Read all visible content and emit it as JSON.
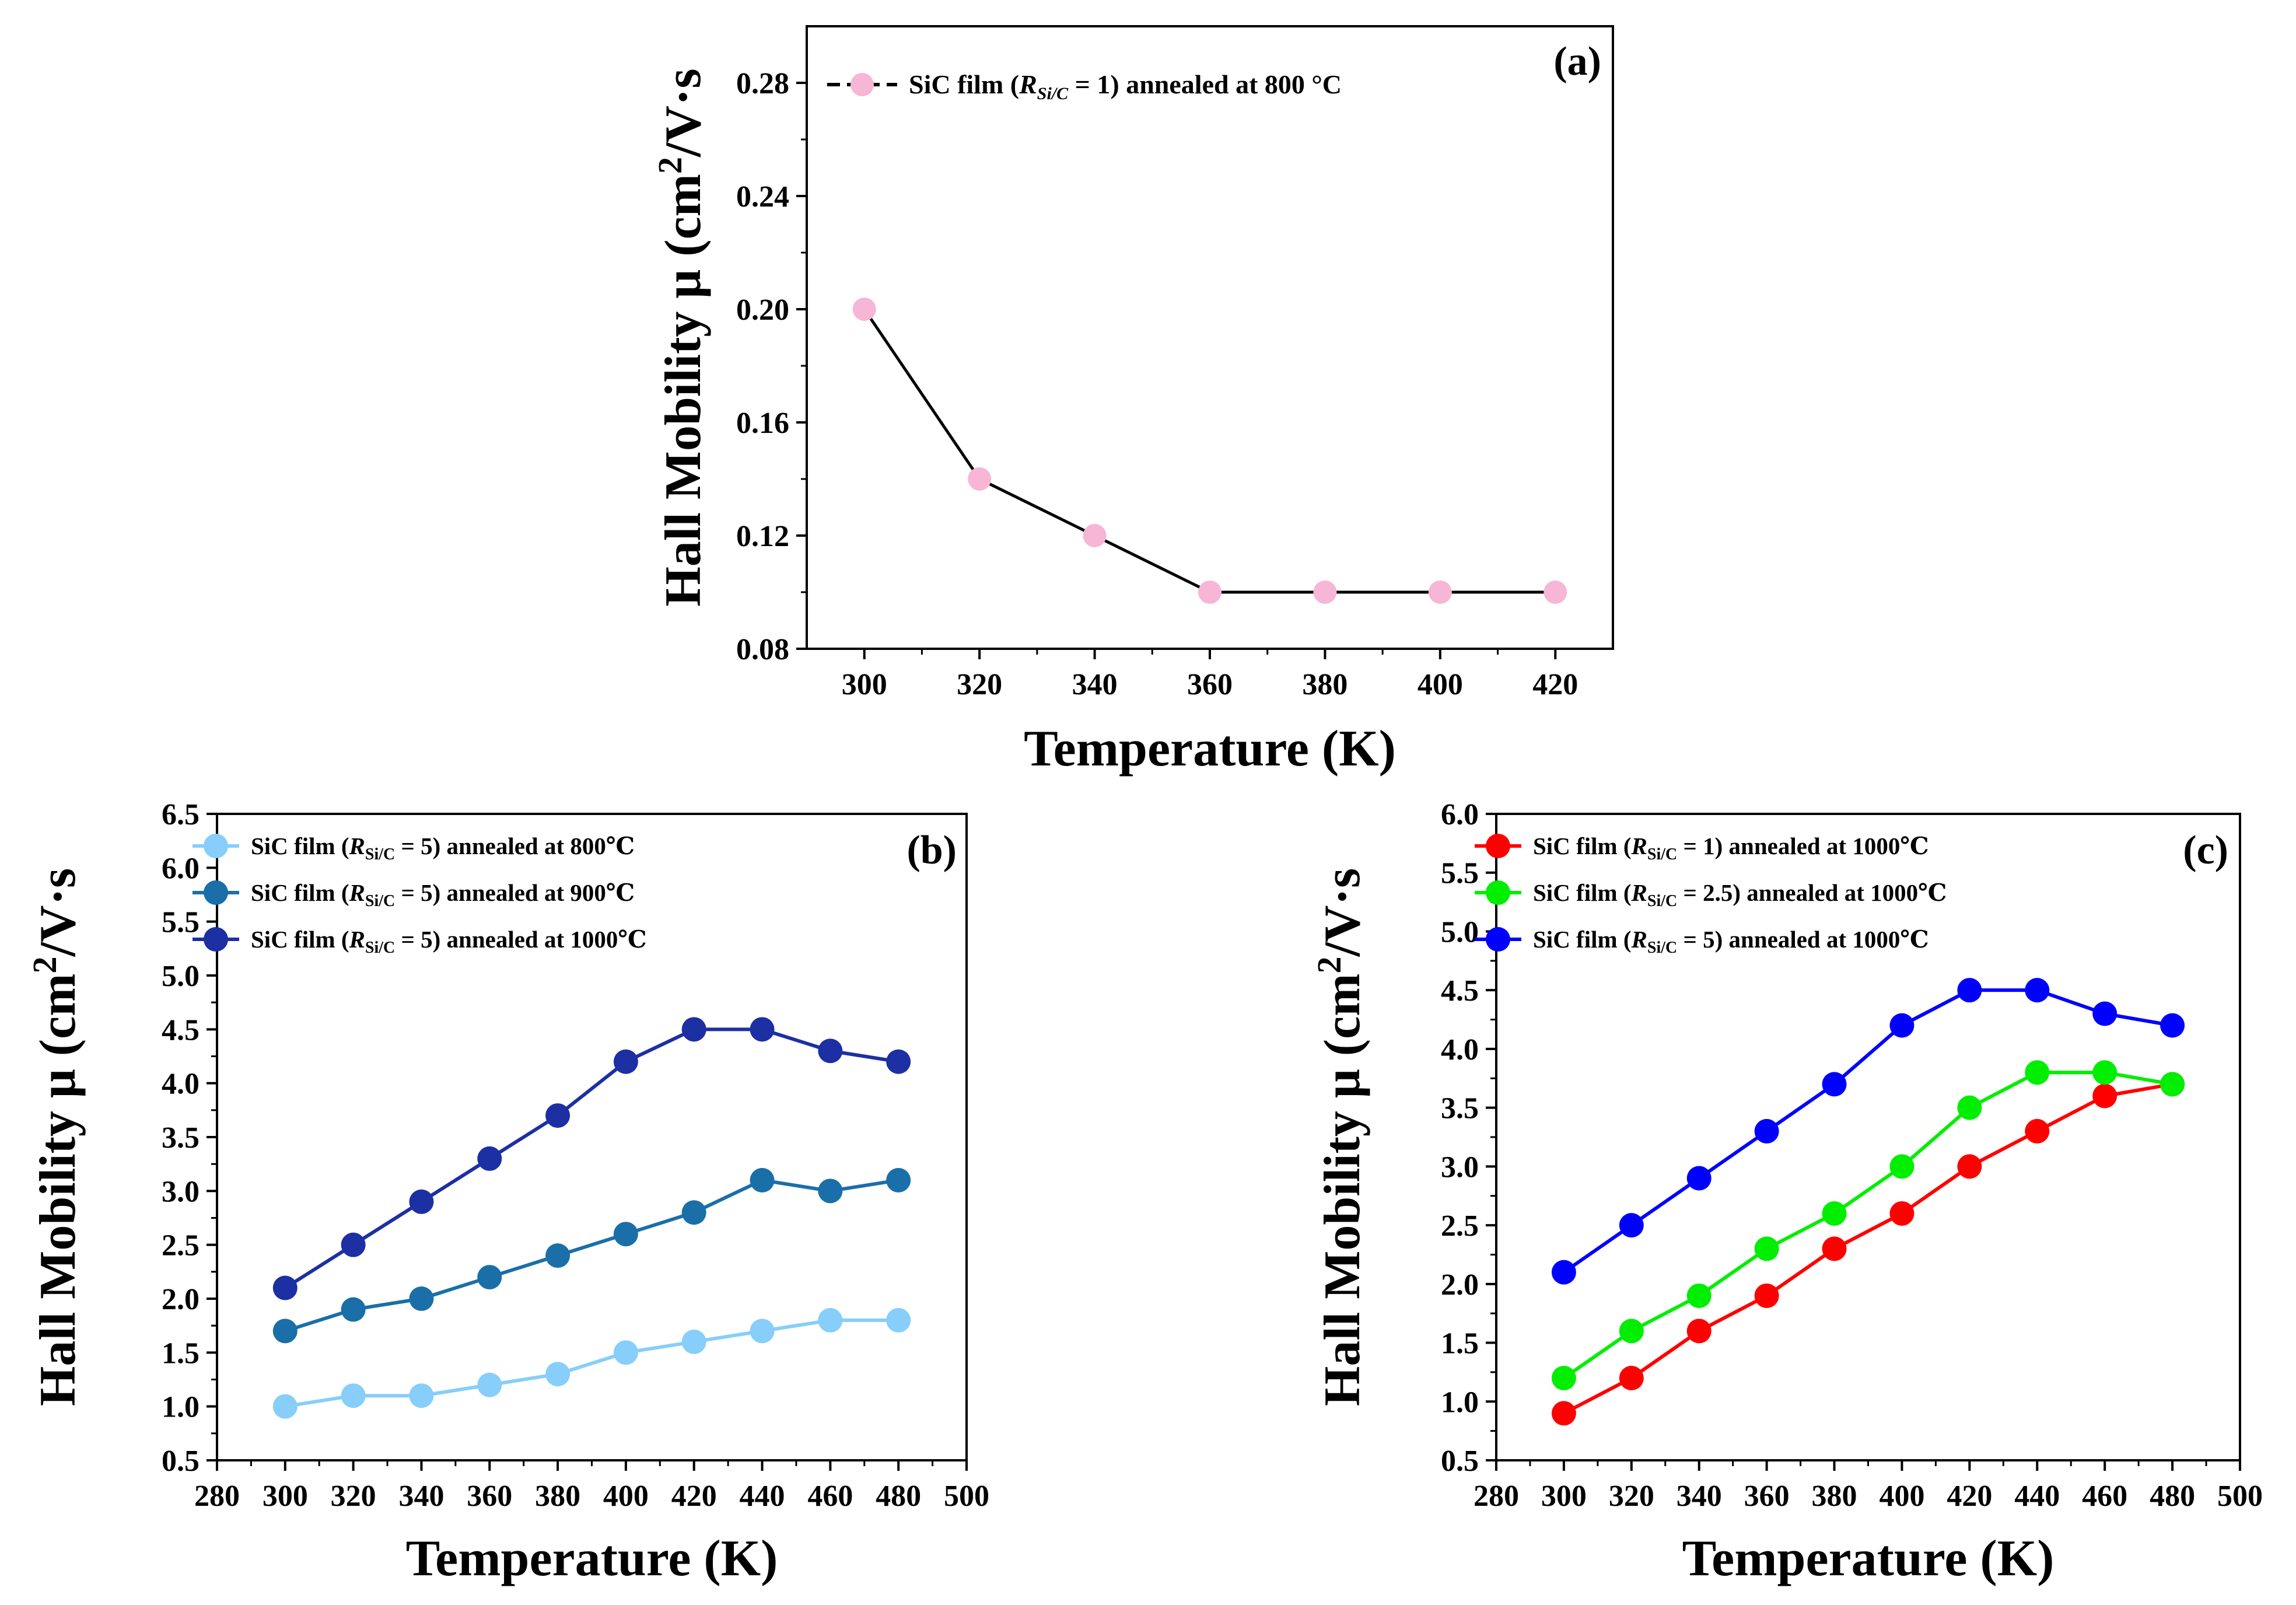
{
  "chart_data": [
    {
      "type": "line",
      "panel_label": "(a)",
      "xlabel": "Temperature (K)",
      "ylabel": {
        "main": "Hall Mobility μ (cm",
        "sup": "2",
        "tail": "/V·s"
      },
      "xlim": [
        290,
        430
      ],
      "ylim": [
        0.08,
        0.3
      ],
      "xticks": [
        300,
        320,
        340,
        360,
        380,
        400,
        420
      ],
      "xtick_labels": [
        "300",
        "320",
        "340",
        "360",
        "380",
        "400",
        "420"
      ],
      "yticks": [
        0.08,
        0.12,
        0.16,
        0.2,
        0.24,
        0.28
      ],
      "ytick_labels": [
        "0.08",
        "0.12",
        "0.16",
        "0.20",
        "0.24",
        "0.28"
      ],
      "legend_position": "top-left",
      "series": [
        {
          "name": "SiC film (R_Si/C = 1) annealed at 800 °C",
          "legend": {
            "pre": "SiC film (",
            "r": "R",
            "sub": "Si/C",
            "post": " = 1) annealed at 800 °C"
          },
          "line_color": "#000000",
          "marker_color": "#f7b6d6",
          "x": [
            300,
            320,
            340,
            360,
            380,
            400,
            420
          ],
          "y": [
            0.2,
            0.14,
            0.12,
            0.1,
            0.1,
            0.1,
            0.1
          ]
        }
      ]
    },
    {
      "type": "line",
      "panel_label": "(b)",
      "xlabel": "Temperature (K)",
      "ylabel": {
        "main": "Hall Mobility μ (cm",
        "sup": "2",
        "tail": "/V·s"
      },
      "xlim": [
        280,
        500
      ],
      "ylim": [
        0.5,
        6.5
      ],
      "xticks": [
        280,
        300,
        320,
        340,
        360,
        380,
        400,
        420,
        440,
        460,
        480,
        500
      ],
      "xtick_labels": [
        "280",
        "300",
        "320",
        "340",
        "360",
        "380",
        "400",
        "420",
        "440",
        "460",
        "480",
        "500"
      ],
      "yticks": [
        0.5,
        1.0,
        1.5,
        2.0,
        2.5,
        3.0,
        3.5,
        4.0,
        4.5,
        5.0,
        5.5,
        6.0,
        6.5
      ],
      "ytick_labels": [
        "0.5",
        "1.0",
        "1.5",
        "2.0",
        "2.5",
        "3.0",
        "3.5",
        "4.0",
        "4.5",
        "5.0",
        "5.5",
        "6.0",
        "6.5"
      ],
      "legend_position": "top-left",
      "series": [
        {
          "name": "SiC film (R_Si/C = 5) annealed at 800℃",
          "legend": {
            "pre": "SiC film (",
            "r": "R",
            "sub": "Si/C",
            "post": " = 5) annealed at 800℃"
          },
          "line_color": "#87cefa",
          "marker_color": "#87cefa",
          "x": [
            300,
            320,
            340,
            360,
            380,
            400,
            420,
            440,
            460,
            480
          ],
          "y": [
            1.0,
            1.1,
            1.1,
            1.2,
            1.3,
            1.5,
            1.6,
            1.7,
            1.8,
            1.8
          ]
        },
        {
          "name": "SiC film (R_Si/C = 5) annealed at 900℃",
          "legend": {
            "pre": "SiC film (",
            "r": "R",
            "sub": "Si/C",
            "post": " = 5) annealed at 900℃"
          },
          "line_color": "#1a6fa8",
          "marker_color": "#1a6fa8",
          "x": [
            300,
            320,
            340,
            360,
            380,
            400,
            420,
            440,
            460,
            480
          ],
          "y": [
            1.7,
            1.9,
            2.0,
            2.2,
            2.4,
            2.6,
            2.8,
            3.1,
            3.0,
            3.1
          ]
        },
        {
          "name": "SiC film (R_Si/C = 5) annealed at 1000℃",
          "legend": {
            "pre": "SiC film (",
            "r": "R",
            "sub": "Si/C",
            "post": " = 5) annealed at 1000℃"
          },
          "line_color": "#1c2fa3",
          "marker_color": "#1c2fa3",
          "x": [
            300,
            320,
            340,
            360,
            380,
            400,
            420,
            440,
            460,
            480
          ],
          "y": [
            2.1,
            2.5,
            2.9,
            3.3,
            3.7,
            4.2,
            4.5,
            4.5,
            4.3,
            4.2
          ]
        }
      ]
    },
    {
      "type": "line",
      "panel_label": "(c)",
      "xlabel": "Temperature (K)",
      "ylabel": {
        "main": "Hall Mobility μ (cm",
        "sup": "2",
        "tail": "/V·s"
      },
      "xlim": [
        280,
        500
      ],
      "ylim": [
        0.5,
        6.0
      ],
      "xticks": [
        280,
        300,
        320,
        340,
        360,
        380,
        400,
        420,
        440,
        460,
        480,
        500
      ],
      "xtick_labels": [
        "280",
        "300",
        "320",
        "340",
        "360",
        "380",
        "400",
        "420",
        "440",
        "460",
        "480",
        "500"
      ],
      "yticks": [
        0.5,
        1.0,
        1.5,
        2.0,
        2.5,
        3.0,
        3.5,
        4.0,
        4.5,
        5.0,
        5.5,
        6.0
      ],
      "ytick_labels": [
        "0.5",
        "1.0",
        "1.5",
        "2.0",
        "2.5",
        "3.0",
        "3.5",
        "4.0",
        "4.5",
        "5.0",
        "5.5",
        "6.0"
      ],
      "legend_position": "top-left",
      "series": [
        {
          "name": "SiC film (R_Si/C = 1) annealed at 1000℃",
          "legend": {
            "pre": "SiC film (",
            "r": "R",
            "sub": "Si/C",
            "post": " = 1) annealed at 1000℃"
          },
          "line_color": "#ff0000",
          "marker_color": "#ff0000",
          "x": [
            300,
            320,
            340,
            360,
            380,
            400,
            420,
            440,
            460,
            480
          ],
          "y": [
            0.9,
            1.2,
            1.6,
            1.9,
            2.3,
            2.6,
            3.0,
            3.3,
            3.6,
            3.7
          ]
        },
        {
          "name": "SiC film (R_Si/C = 2.5) annealed at 1000℃",
          "legend": {
            "pre": "SiC film (",
            "r": "R",
            "sub": "Si/C",
            "post": " = 2.5) annealed at 1000℃"
          },
          "line_color": "#00ee00",
          "marker_color": "#00ee00",
          "x": [
            300,
            320,
            340,
            360,
            380,
            400,
            420,
            440,
            460,
            480
          ],
          "y": [
            1.2,
            1.6,
            1.9,
            2.3,
            2.6,
            3.0,
            3.5,
            3.8,
            3.8,
            3.7
          ]
        },
        {
          "name": "SiC film (R_Si/C = 5) annealed at 1000℃",
          "legend": {
            "pre": "SiC film (",
            "r": "R",
            "sub": "Si/C",
            "post": " = 5) annealed at 1000℃"
          },
          "line_color": "#0000ff",
          "marker_color": "#0000ff",
          "x": [
            300,
            320,
            340,
            360,
            380,
            400,
            420,
            440,
            460,
            480
          ],
          "y": [
            2.1,
            2.5,
            2.9,
            3.3,
            3.7,
            4.2,
            4.5,
            4.5,
            4.3,
            4.2
          ]
        }
      ]
    }
  ]
}
